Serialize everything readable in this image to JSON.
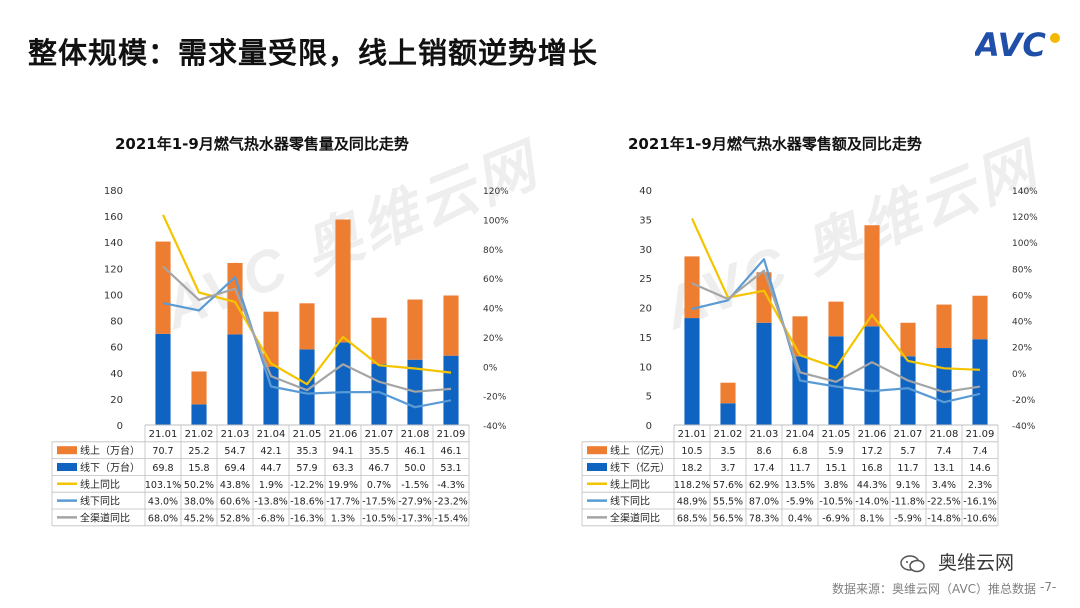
{
  "slide": {
    "title": "整体规模：需求量受限，线上销额逆势增长",
    "logo_text": "AVC",
    "source": "数据来源：奥维云网（AVC）推总数据",
    "page": "-7-",
    "wechat_label": "奥维云网",
    "watermark": "AVC 奥维云网"
  },
  "colors": {
    "online": "#ed7d31",
    "offline": "#0f64c2",
    "online_yoy": "#f5c400",
    "offline_yoy": "#5b9bd5",
    "total_yoy": "#a5a5a5"
  },
  "chart_data": [
    {
      "type": "bar",
      "title": "2021年1-9月燃气热水器零售量及同比走势",
      "categories": [
        "21.01",
        "21.02",
        "21.03",
        "21.04",
        "21.05",
        "21.06",
        "21.07",
        "21.08",
        "21.09"
      ],
      "ylim": [
        0,
        180
      ],
      "yticks": [
        "180",
        "160",
        "140",
        "120",
        "100",
        "80",
        "60",
        "40",
        "20",
        "0"
      ],
      "y2lim": [
        -40,
        120
      ],
      "y2ticks": [
        "120%",
        "100%",
        "80%",
        "60%",
        "40%",
        "20%",
        "0%",
        "-20%",
        "-40%"
      ],
      "series": [
        {
          "name": "线上（万台）",
          "kind": "bar",
          "values": [
            70.7,
            25.2,
            54.7,
            42.1,
            35.3,
            94.1,
            35.5,
            46.1,
            46.1
          ],
          "labels": [
            "70.7",
            "25.2",
            "54.7",
            "42.1",
            "35.3",
            "94.1",
            "35.5",
            "46.1",
            "46.1"
          ]
        },
        {
          "name": "线下（万台）",
          "kind": "bar",
          "values": [
            69.8,
            15.8,
            69.4,
            44.7,
            57.9,
            63.3,
            46.7,
            50.0,
            53.1
          ],
          "labels": [
            "69.8",
            "15.8",
            "69.4",
            "44.7",
            "57.9",
            "63.3",
            "46.7",
            "50.0",
            "53.1"
          ]
        },
        {
          "name": "线上同比",
          "kind": "line",
          "values": [
            103.1,
            50.2,
            43.8,
            1.9,
            -12.2,
            19.9,
            0.7,
            -1.5,
            -4.3
          ],
          "labels": [
            "103.1%",
            "50.2%",
            "43.8%",
            "1.9%",
            "-12.2%",
            "19.9%",
            "0.7%",
            "-1.5%",
            "-4.3%"
          ]
        },
        {
          "name": "线下同比",
          "kind": "line",
          "values": [
            43.0,
            38.0,
            60.6,
            -13.8,
            -18.6,
            -17.7,
            -17.5,
            -27.9,
            -23.2
          ],
          "labels": [
            "43.0%",
            "38.0%",
            "60.6%",
            "-13.8%",
            "-18.6%",
            "-17.7%",
            "-17.5%",
            "-27.9%",
            "-23.2%"
          ]
        },
        {
          "name": "全渠道同比",
          "kind": "line",
          "values": [
            68.0,
            45.2,
            52.8,
            -6.8,
            -16.3,
            1.3,
            -10.5,
            -17.3,
            -15.4
          ],
          "labels": [
            "68.0%",
            "45.2%",
            "52.8%",
            "-6.8%",
            "-16.3%",
            "1.3%",
            "-10.5%",
            "-17.3%",
            "-15.4%"
          ]
        }
      ]
    },
    {
      "type": "bar",
      "title": "2021年1-9月燃气热水器零售额及同比走势",
      "categories": [
        "21.01",
        "21.02",
        "21.03",
        "21.04",
        "21.05",
        "21.06",
        "21.07",
        "21.08",
        "21.09"
      ],
      "ylim": [
        0,
        40
      ],
      "yticks": [
        "40",
        "35",
        "30",
        "25",
        "20",
        "15",
        "10",
        "5",
        "0"
      ],
      "y2lim": [
        -40,
        140
      ],
      "y2ticks": [
        "140%",
        "120%",
        "100%",
        "80%",
        "60%",
        "40%",
        "20%",
        "0%",
        "-20%",
        "-40%"
      ],
      "series": [
        {
          "name": "线上（亿元）",
          "kind": "bar",
          "values": [
            10.5,
            3.5,
            8.6,
            6.8,
            5.9,
            17.2,
            5.7,
            7.4,
            7.4
          ],
          "labels": [
            "10.5",
            "3.5",
            "8.6",
            "6.8",
            "5.9",
            "17.2",
            "5.7",
            "7.4",
            "7.4"
          ]
        },
        {
          "name": "线下（亿元）",
          "kind": "bar",
          "values": [
            18.2,
            3.7,
            17.4,
            11.7,
            15.1,
            16.8,
            11.7,
            13.1,
            14.6
          ],
          "labels": [
            "18.2",
            "3.7",
            "17.4",
            "11.7",
            "15.1",
            "16.8",
            "11.7",
            "13.1",
            "14.6"
          ]
        },
        {
          "name": "线上同比",
          "kind": "line",
          "values": [
            118.2,
            57.6,
            62.9,
            13.5,
            3.8,
            44.3,
            9.1,
            3.4,
            2.3
          ],
          "labels": [
            "118.2%",
            "57.6%",
            "62.9%",
            "13.5%",
            "3.8%",
            "44.3%",
            "9.1%",
            "3.4%",
            "2.3%"
          ]
        },
        {
          "name": "线下同比",
          "kind": "line",
          "values": [
            48.9,
            55.5,
            87.0,
            -5.9,
            -10.5,
            -14.0,
            -11.8,
            -22.5,
            -16.1
          ],
          "labels": [
            "48.9%",
            "55.5%",
            "87.0%",
            "-5.9%",
            "-10.5%",
            "-14.0%",
            "-11.8%",
            "-22.5%",
            "-16.1%"
          ]
        },
        {
          "name": "全渠道同比",
          "kind": "line",
          "values": [
            68.5,
            56.5,
            78.3,
            0.4,
            -6.9,
            8.1,
            -5.9,
            -14.8,
            -10.6
          ],
          "labels": [
            "68.5%",
            "56.5%",
            "78.3%",
            "0.4%",
            "-6.9%",
            "8.1%",
            "-5.9%",
            "-14.8%",
            "-10.6%"
          ]
        }
      ]
    }
  ]
}
